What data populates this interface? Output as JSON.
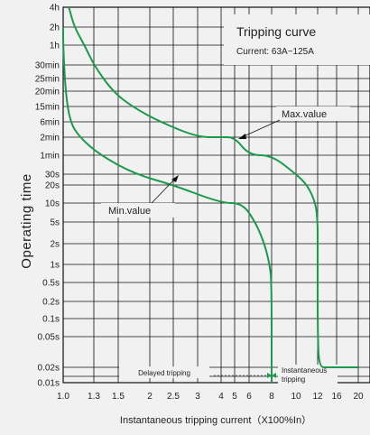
{
  "chart_data": {
    "type": "line",
    "title": "Tripping curve",
    "subtitle": "Current: 63A~125A",
    "xlabel": "Instantaneous tripping current（X100%In）",
    "ylabel": "Operating time",
    "x_ticks": [
      "1.0",
      "1.3",
      "1.5",
      "2",
      "2.5",
      "3",
      "4",
      "5",
      "6",
      "8",
      "10",
      "12",
      "16",
      "20"
    ],
    "y_ticks": [
      "4h",
      "2h",
      "1h",
      "30min",
      "25min",
      "20min",
      "15min",
      "6min",
      "2min",
      "1min",
      "30s",
      "20s",
      "10s",
      "5s",
      "2s",
      "1s",
      "0.5s",
      "0.2s",
      "0.1s",
      "0.05s",
      "0.02s",
      "0.01s"
    ],
    "grid": true,
    "line_color": "#1a9a4a",
    "series": [
      {
        "name": "Max.value",
        "points": [
          [
            1.05,
            "4h"
          ],
          [
            1.1,
            "2h"
          ],
          [
            1.2,
            "1h"
          ],
          [
            1.3,
            "30min"
          ],
          [
            1.45,
            "20min"
          ],
          [
            1.7,
            "15min"
          ],
          [
            2.2,
            "6min"
          ],
          [
            3.0,
            "2min"
          ],
          [
            4.0,
            "2min"
          ],
          [
            5.0,
            "2min"
          ],
          [
            6.0,
            "1min"
          ],
          [
            8.0,
            "1min"
          ],
          [
            10.0,
            "30s"
          ],
          [
            11.0,
            "20s"
          ],
          [
            11.8,
            "10s"
          ],
          [
            12.0,
            "5s"
          ],
          [
            12.0,
            "2s"
          ],
          [
            12.0,
            "0.05s"
          ],
          [
            12.3,
            "0.02s"
          ],
          [
            14.0,
            "0.02s"
          ],
          [
            20.0,
            "0.02s"
          ]
        ]
      },
      {
        "name": "Min.value",
        "points": [
          [
            1.0,
            "2h"
          ],
          [
            1.0,
            "1h"
          ],
          [
            1.02,
            "20min"
          ],
          [
            1.06,
            "6min"
          ],
          [
            1.15,
            "2min"
          ],
          [
            1.35,
            "1min"
          ],
          [
            1.75,
            "30s"
          ],
          [
            2.5,
            "20s"
          ],
          [
            4.0,
            "10s"
          ],
          [
            5.5,
            "10s"
          ],
          [
            6.5,
            "5s"
          ],
          [
            7.3,
            "2s"
          ],
          [
            7.8,
            "1s"
          ],
          [
            8.0,
            "0.5s"
          ],
          [
            8.0,
            "0.01s"
          ]
        ]
      }
    ],
    "regions": [
      "Delayed tripping",
      "Instantaneous tripping"
    ],
    "annotations": [
      "Max.value",
      "Min.value"
    ]
  }
}
